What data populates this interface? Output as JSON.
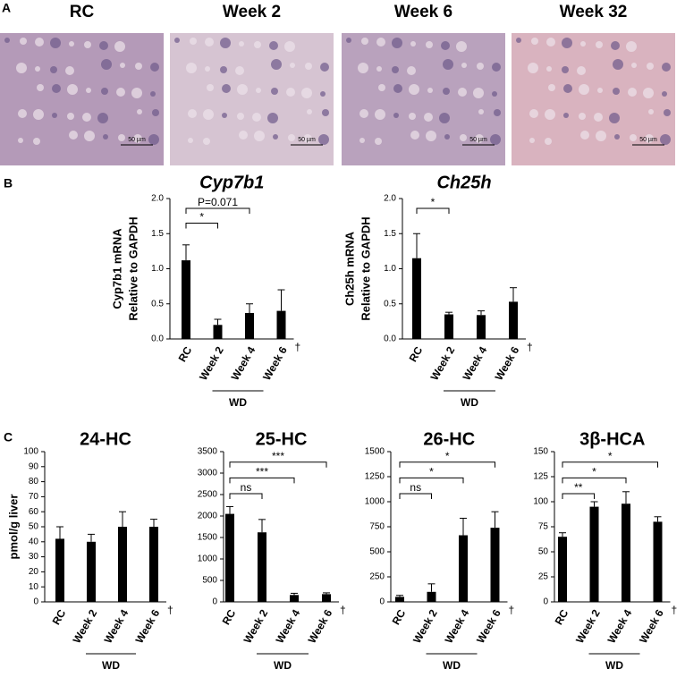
{
  "panel_labels": [
    "A",
    "B",
    "C"
  ],
  "images": [
    {
      "title": "RC",
      "scale": "50 µm"
    },
    {
      "title": "Week 2",
      "scale": "50 µm"
    },
    {
      "title": "Week 6",
      "scale": "50 µm"
    },
    {
      "title": "Week 32",
      "scale": "50 µm"
    }
  ],
  "chart_data": [
    {
      "type": "bar",
      "title": "Cyp7b1",
      "ylabel": [
        "Cyp7b1 mRNA",
        "Relative to GAPDH"
      ],
      "categories": [
        "RC",
        "Week 2",
        "Week 4",
        "Week 6"
      ],
      "values": [
        1.12,
        0.2,
        0.37,
        0.4
      ],
      "errors": [
        0.22,
        0.08,
        0.13,
        0.3
      ],
      "color": "#000000",
      "ylim": [
        0,
        2
      ],
      "yticks": [
        {
          "value": 0,
          "label": "0.0"
        },
        {
          "value": 0.5,
          "label": "0.5"
        },
        {
          "value": 1,
          "label": "1.0"
        },
        {
          "value": 1.5,
          "label": "1.5"
        },
        {
          "value": 2,
          "label": "2.0"
        }
      ],
      "annotations": [
        {
          "text": "*",
          "from": "RC",
          "to": "Week 2"
        },
        {
          "text": "P=0.071",
          "from": "RC",
          "to": "Week 4"
        }
      ],
      "group_label": "WD",
      "note": "†"
    },
    {
      "type": "bar",
      "title": "Ch25h",
      "ylabel": [
        "Ch25h mRNA",
        "Relative to GAPDH"
      ],
      "categories": [
        "RC",
        "Week 2",
        "Week 4",
        "Week 6"
      ],
      "values": [
        1.15,
        0.35,
        0.34,
        0.53
      ],
      "errors": [
        0.35,
        0.03,
        0.06,
        0.2
      ],
      "color": "#000000",
      "ylim": [
        0,
        2
      ],
      "yticks": [
        {
          "value": 0,
          "label": "0.0"
        },
        {
          "value": 0.5,
          "label": "0.5"
        },
        {
          "value": 1,
          "label": "1.0"
        },
        {
          "value": 1.5,
          "label": "1.5"
        },
        {
          "value": 2,
          "label": "2.0"
        }
      ],
      "annotations": [
        {
          "text": "*",
          "from": "RC",
          "to": "Week 2"
        }
      ],
      "group_label": "WD",
      "note": "†"
    },
    {
      "type": "bar",
      "title": "24-HC",
      "ylabel": [
        "pmol/g liver"
      ],
      "categories": [
        "RC",
        "Week 2",
        "Week 4",
        "Week 6"
      ],
      "values": [
        42,
        40,
        50,
        50
      ],
      "errors": [
        8,
        5,
        10,
        5
      ],
      "color": "#000000",
      "ylim": [
        0,
        100
      ],
      "yticks": [
        0,
        10,
        20,
        30,
        40,
        50,
        60,
        70,
        80,
        90,
        100
      ],
      "annotations": [],
      "group_label": "WD",
      "note": "†"
    },
    {
      "type": "bar",
      "title": "25-HC",
      "categories": [
        "RC",
        "Week 2",
        "Week 4",
        "Week 6"
      ],
      "values": [
        2050,
        1620,
        160,
        180
      ],
      "errors": [
        170,
        300,
        40,
        30
      ],
      "color": "#000000",
      "ylim": [
        0,
        3500
      ],
      "yticks": [
        0,
        500,
        1000,
        1500,
        2000,
        2500,
        3000,
        3500
      ],
      "annotations": [
        {
          "text": "ns",
          "from": "RC",
          "to": "Week 2"
        },
        {
          "text": "***",
          "from": "RC",
          "to": "Week 4"
        },
        {
          "text": "***",
          "from": "RC",
          "to": "Week 6"
        }
      ],
      "group_label": "WD",
      "note": "†"
    },
    {
      "type": "bar",
      "title": "26-HC",
      "categories": [
        "RC",
        "Week 2",
        "Week 4",
        "Week 6"
      ],
      "values": [
        50,
        100,
        665,
        740
      ],
      "errors": [
        15,
        80,
        170,
        160
      ],
      "color": "#000000",
      "ylim": [
        0,
        1500
      ],
      "yticks": [
        0,
        250,
        500,
        750,
        1000,
        1250,
        1500
      ],
      "annotations": [
        {
          "text": "ns",
          "from": "RC",
          "to": "Week 2"
        },
        {
          "text": "*",
          "from": "RC",
          "to": "Week 4"
        },
        {
          "text": "*",
          "from": "RC",
          "to": "Week 6"
        }
      ],
      "group_label": "WD",
      "note": "†"
    },
    {
      "type": "bar",
      "title": "3β-HCA",
      "categories": [
        "RC",
        "Week 2",
        "Week 4",
        "Week 6"
      ],
      "values": [
        65,
        95,
        98,
        80
      ],
      "errors": [
        4,
        5,
        12,
        5
      ],
      "color": "#000000",
      "ylim": [
        0,
        150
      ],
      "yticks": [
        0,
        25,
        50,
        75,
        100,
        125,
        150
      ],
      "annotations": [
        {
          "text": "**",
          "from": "RC",
          "to": "Week 2"
        },
        {
          "text": "*",
          "from": "RC",
          "to": "Week 4"
        },
        {
          "text": "*",
          "from": "RC",
          "to": "Week 6"
        }
      ],
      "group_label": "WD",
      "note": "†"
    }
  ]
}
